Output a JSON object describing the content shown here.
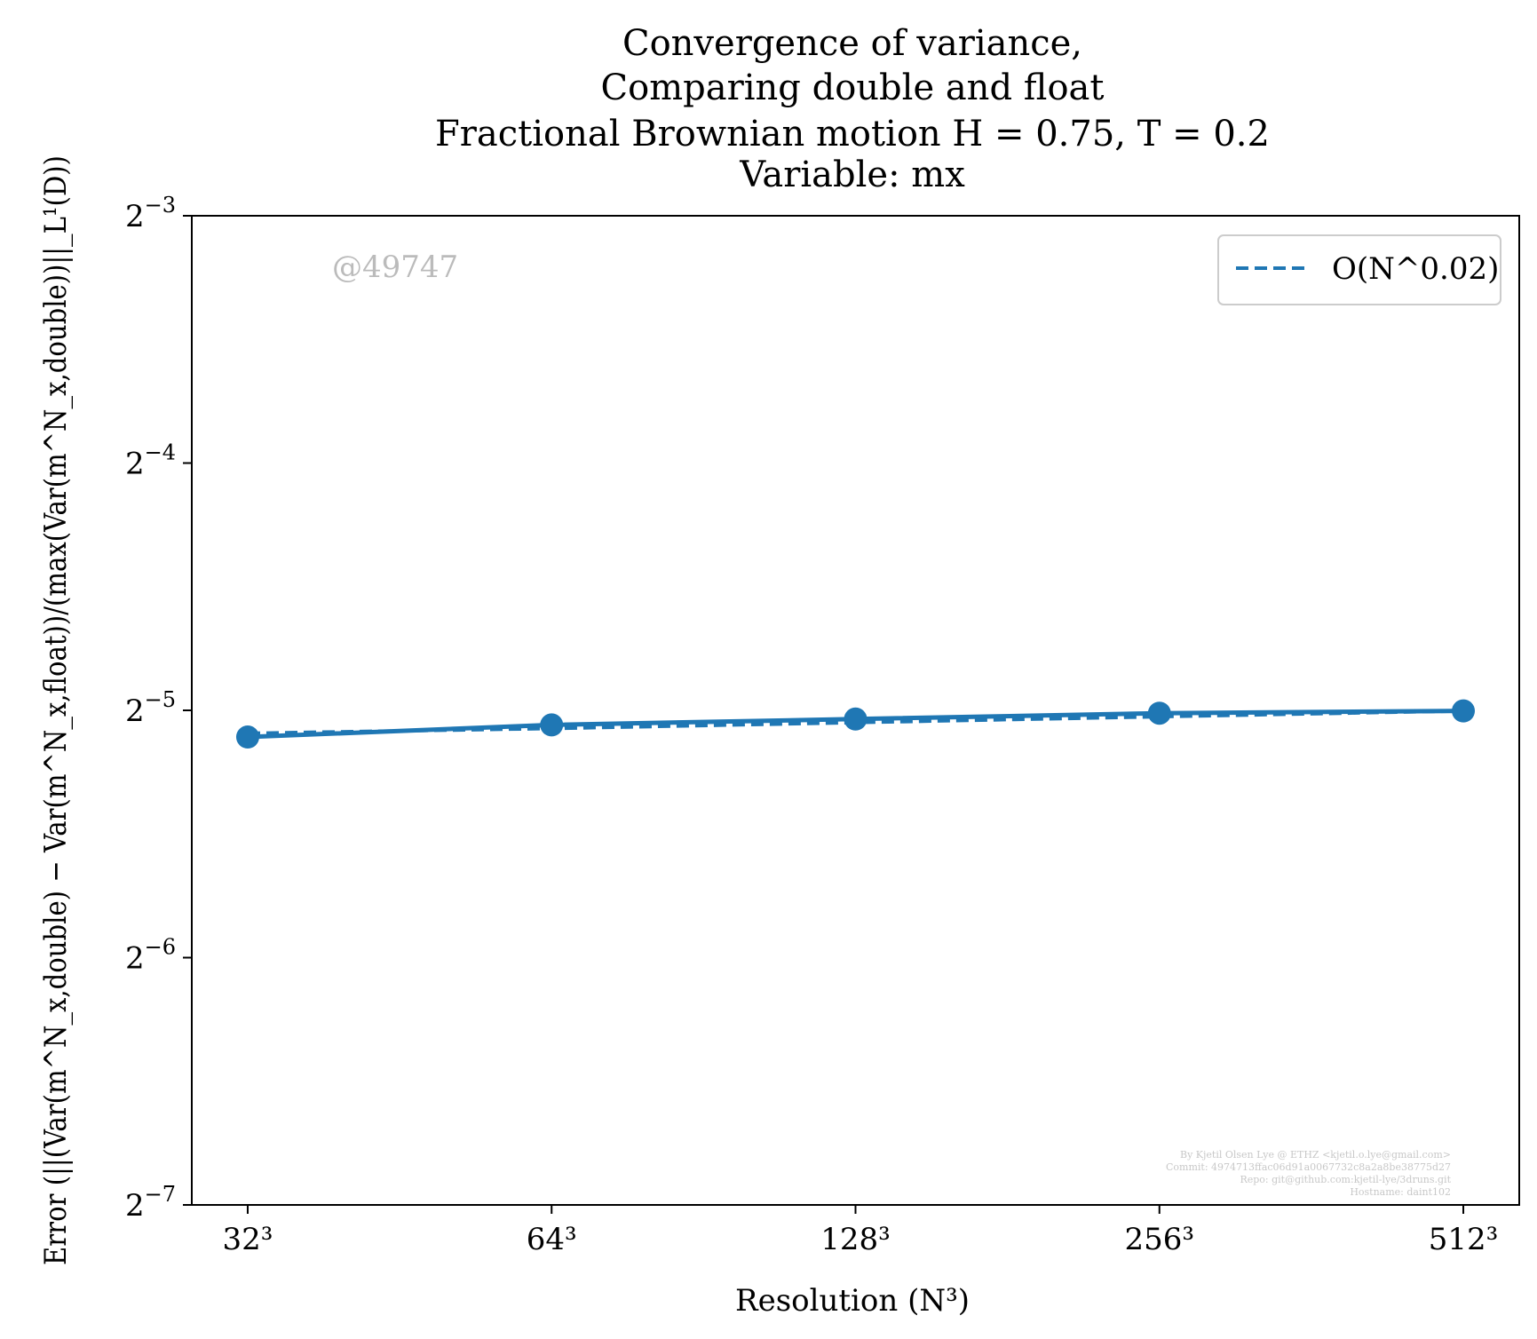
{
  "chart_data": {
    "type": "line",
    "title_lines": [
      "Convergence of variance,",
      "Comparing double and float",
      "Fractional Brownian motion H = 0.75, T = 0.2",
      "Variable: mx"
    ],
    "xlabel": "Resolution (N³)",
    "ylabel": "Error (||(Var(m^N_x,double) − Var(m^N_x,float))/(max(Var(m^N_x,double))||_L¹(D))",
    "x": [
      32,
      64,
      128,
      256,
      512
    ],
    "x_tick_labels": [
      "32³",
      "64³",
      "128³",
      "256³",
      "512³"
    ],
    "x_scale": "log2",
    "y_scale": "log2",
    "ylim_exponents": [
      -7,
      -3
    ],
    "y_tick_exponents": [
      -7,
      -6,
      -5,
      -4,
      -3
    ],
    "y_tick_base": "2",
    "series": [
      {
        "style": "solid",
        "marker": "circle",
        "color": "#1f77b4",
        "values": [
          0.029,
          0.03,
          0.0305,
          0.031,
          0.0312
        ]
      },
      {
        "name": "O(N^0.02)",
        "style": "dashed",
        "marker": "none",
        "color": "#1f77b4",
        "values": [
          0.0293,
          0.0297,
          0.0302,
          0.0307,
          0.0312
        ]
      }
    ],
    "legend": {
      "placement": "top-right",
      "label": "O(N^0.02)"
    },
    "watermark": "@49747",
    "footer": [
      "By Kjetil Olsen Lye @ ETHZ <kjetil.o.lye@gmail.com>",
      "Commit: 4974713ffac06d91a0067732c8a2a8be38775d27",
      "Repo: git@github.com:kjetil-lye/3druns.git",
      "Hostname: daint102"
    ],
    "grid": false
  }
}
